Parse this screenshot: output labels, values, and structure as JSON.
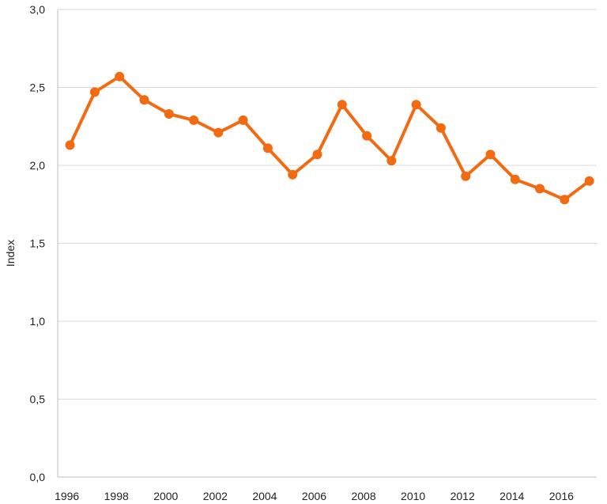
{
  "chart_data": {
    "type": "line",
    "title": "",
    "xlabel": "",
    "ylabel": "Index",
    "ylim": [
      0,
      3
    ],
    "y_ticks": [
      "0,0",
      "0,5",
      "1,0",
      "1,5",
      "2,0",
      "2,5",
      "3,0"
    ],
    "x_tick_labels": [
      "1996",
      "1998",
      "2000",
      "2002",
      "2004",
      "2006",
      "2008",
      "2010",
      "2012",
      "2014",
      "2016"
    ],
    "grid": true,
    "legend": "none",
    "series": [
      {
        "color": "#F26A12",
        "x": [
          1996,
          1997,
          1998,
          1999,
          2000,
          2001,
          2002,
          2003,
          2004,
          2005,
          2006,
          2007,
          2008,
          2009,
          2010,
          2011,
          2012,
          2013,
          2014,
          2015,
          2016,
          2017
        ],
        "values": [
          2.13,
          2.47,
          2.57,
          2.42,
          2.33,
          2.29,
          2.21,
          2.29,
          2.11,
          1.94,
          2.07,
          2.39,
          2.19,
          2.03,
          2.39,
          2.24,
          1.93,
          2.07,
          1.91,
          1.85,
          1.78,
          1.9
        ]
      }
    ]
  }
}
